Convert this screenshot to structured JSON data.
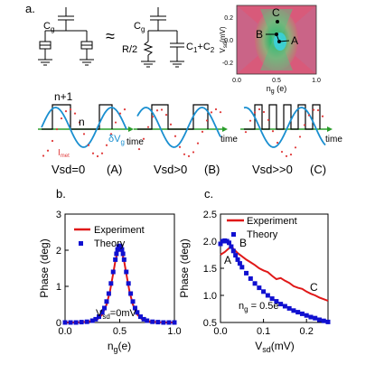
{
  "figure": {
    "panel_a": {
      "label": "a.",
      "circuit": {
        "cg_left": "C",
        "cg_left_sub": "g",
        "approx": "≈",
        "cg_right": "C",
        "cg_right_sub": "g",
        "resistor": "R/2",
        "cap_sum": "C",
        "cap_sum_sub1": "1",
        "cap_sum_mid": "+C",
        "cap_sum_sub2": "2"
      },
      "inset": {
        "ylabel": "V",
        "ylabel_sub": "sd",
        "ylabel_unit": "(mV)",
        "xlabel": "n",
        "xlabel_sub": "g",
        "xlabel_unit": " (e)",
        "x_ticks": [
          "0.0",
          "0.5",
          "1.0"
        ],
        "y_ticks": [
          "0.2",
          "0.0",
          "-0.2"
        ],
        "points": [
          "A",
          "B",
          "C"
        ],
        "colors": {
          "background": "#d85a7a",
          "center": "#2fb86e",
          "core": "#3bd2e0"
        }
      },
      "sketches": {
        "level_top": "n+1",
        "level_mid": "n",
        "imet": "I",
        "imet_sub": "met",
        "dv": "δV",
        "dv_sub": "g",
        "time": [
          "time",
          "time",
          "time"
        ],
        "captions": [
          "Vsd=0",
          "(A)",
          "Vsd>0",
          "(B)",
          "Vsd>>0",
          "(C)"
        ],
        "colors": {
          "wave": "#1a8fd0",
          "dots": "#e03a3a",
          "axis": "#2a9d2a",
          "steps": "#000000"
        }
      }
    }
  },
  "chart_data": [
    {
      "panel": "b.",
      "type": "line",
      "xlabel": "n",
      "xlabel_sub": "g",
      "xlabel_unit": "(e)",
      "ylabel": "Phase (deg)",
      "xlim": [
        0.0,
        1.0
      ],
      "ylim": [
        0,
        3
      ],
      "x_ticks": [
        "0.0",
        "0.5",
        "1.0"
      ],
      "y_ticks": [
        "0",
        "1",
        "2",
        "3"
      ],
      "legend_position": "top-left",
      "annotation": "V",
      "annotation_sub": "sd",
      "annotation_rest": "=0mV",
      "series": [
        {
          "name": "Experiment",
          "style": "line",
          "color": "#e01818",
          "x": [
            0.0,
            0.1,
            0.2,
            0.25,
            0.3,
            0.34,
            0.38,
            0.41,
            0.44,
            0.46,
            0.48,
            0.5,
            0.52,
            0.54,
            0.56,
            0.59,
            0.62,
            0.66,
            0.7,
            0.75,
            0.8,
            0.9,
            1.0
          ],
          "y": [
            0.0,
            0.0,
            0.02,
            0.04,
            0.1,
            0.22,
            0.5,
            0.85,
            1.35,
            1.7,
            1.95,
            2.02,
            1.95,
            1.7,
            1.35,
            0.85,
            0.5,
            0.22,
            0.1,
            0.04,
            0.02,
            0.0,
            0.0
          ]
        },
        {
          "name": "Theory",
          "style": "markers",
          "color": "#1010d0",
          "x": [
            0.0,
            0.05,
            0.1,
            0.15,
            0.2,
            0.25,
            0.28,
            0.31,
            0.34,
            0.36,
            0.38,
            0.4,
            0.42,
            0.44,
            0.46,
            0.47,
            0.48,
            0.49,
            0.5,
            0.51,
            0.52,
            0.53,
            0.54,
            0.56,
            0.58,
            0.6,
            0.62,
            0.64,
            0.66,
            0.69,
            0.72,
            0.75,
            0.8,
            0.85,
            0.9,
            0.95,
            1.0
          ],
          "y": [
            0.0,
            0.0,
            0.0,
            0.01,
            0.02,
            0.05,
            0.09,
            0.16,
            0.28,
            0.4,
            0.58,
            0.8,
            1.08,
            1.4,
            1.74,
            1.9,
            2.02,
            2.1,
            2.12,
            2.1,
            2.02,
            1.9,
            1.74,
            1.4,
            1.08,
            0.8,
            0.58,
            0.4,
            0.28,
            0.16,
            0.09,
            0.05,
            0.02,
            0.01,
            0.0,
            0.0,
            0.0
          ]
        }
      ]
    },
    {
      "panel": "c.",
      "type": "line",
      "xlabel": "V",
      "xlabel_sub": "sd",
      "xlabel_unit": "(mV)",
      "ylabel": "Phase (deg)",
      "xlim": [
        0.0,
        0.25
      ],
      "ylim": [
        0.5,
        2.5
      ],
      "x_ticks": [
        "0.0",
        "0.1",
        "0.2"
      ],
      "y_ticks": [
        "0.5",
        "1.0",
        "1.5",
        "2.0",
        "2.5"
      ],
      "legend_position": "top-left",
      "annotation": "n",
      "annotation_sub": "g",
      "annotation_rest": " = 0.5e",
      "points": [
        {
          "label": "A",
          "x": 0.0,
          "y": 1.75
        },
        {
          "label": "B",
          "x": 0.03,
          "y": 1.9
        },
        {
          "label": "C",
          "x": 0.22,
          "y": 0.97
        }
      ],
      "series": [
        {
          "name": "Experiment",
          "style": "line",
          "color": "#e01818",
          "x": [
            0.0,
            0.01,
            0.02,
            0.025,
            0.03,
            0.04,
            0.05,
            0.06,
            0.07,
            0.08,
            0.09,
            0.1,
            0.11,
            0.12,
            0.13,
            0.14,
            0.15,
            0.16,
            0.17,
            0.18,
            0.19,
            0.2,
            0.21,
            0.22,
            0.23,
            0.24,
            0.25
          ],
          "y": [
            1.75,
            1.8,
            1.87,
            1.9,
            1.86,
            1.78,
            1.72,
            1.66,
            1.61,
            1.56,
            1.5,
            1.46,
            1.43,
            1.36,
            1.3,
            1.32,
            1.27,
            1.23,
            1.17,
            1.14,
            1.12,
            1.07,
            1.03,
            1.0,
            0.96,
            0.93,
            0.9
          ]
        },
        {
          "name": "Theory",
          "style": "markers",
          "color": "#1010d0",
          "x": [
            0.0,
            0.005,
            0.01,
            0.015,
            0.02,
            0.025,
            0.03,
            0.035,
            0.04,
            0.045,
            0.05,
            0.06,
            0.07,
            0.08,
            0.09,
            0.1,
            0.11,
            0.12,
            0.13,
            0.14,
            0.15,
            0.16,
            0.17,
            0.18,
            0.19,
            0.2,
            0.21,
            0.22,
            0.23,
            0.24,
            0.25
          ],
          "y": [
            1.95,
            2.0,
            2.01,
            2.0,
            1.97,
            1.9,
            1.82,
            1.74,
            1.66,
            1.59,
            1.52,
            1.41,
            1.31,
            1.22,
            1.14,
            1.07,
            1.0,
            0.94,
            0.89,
            0.84,
            0.8,
            0.76,
            0.72,
            0.69,
            0.66,
            0.63,
            0.6,
            0.58,
            0.55,
            0.53,
            0.51
          ]
        }
      ]
    }
  ]
}
